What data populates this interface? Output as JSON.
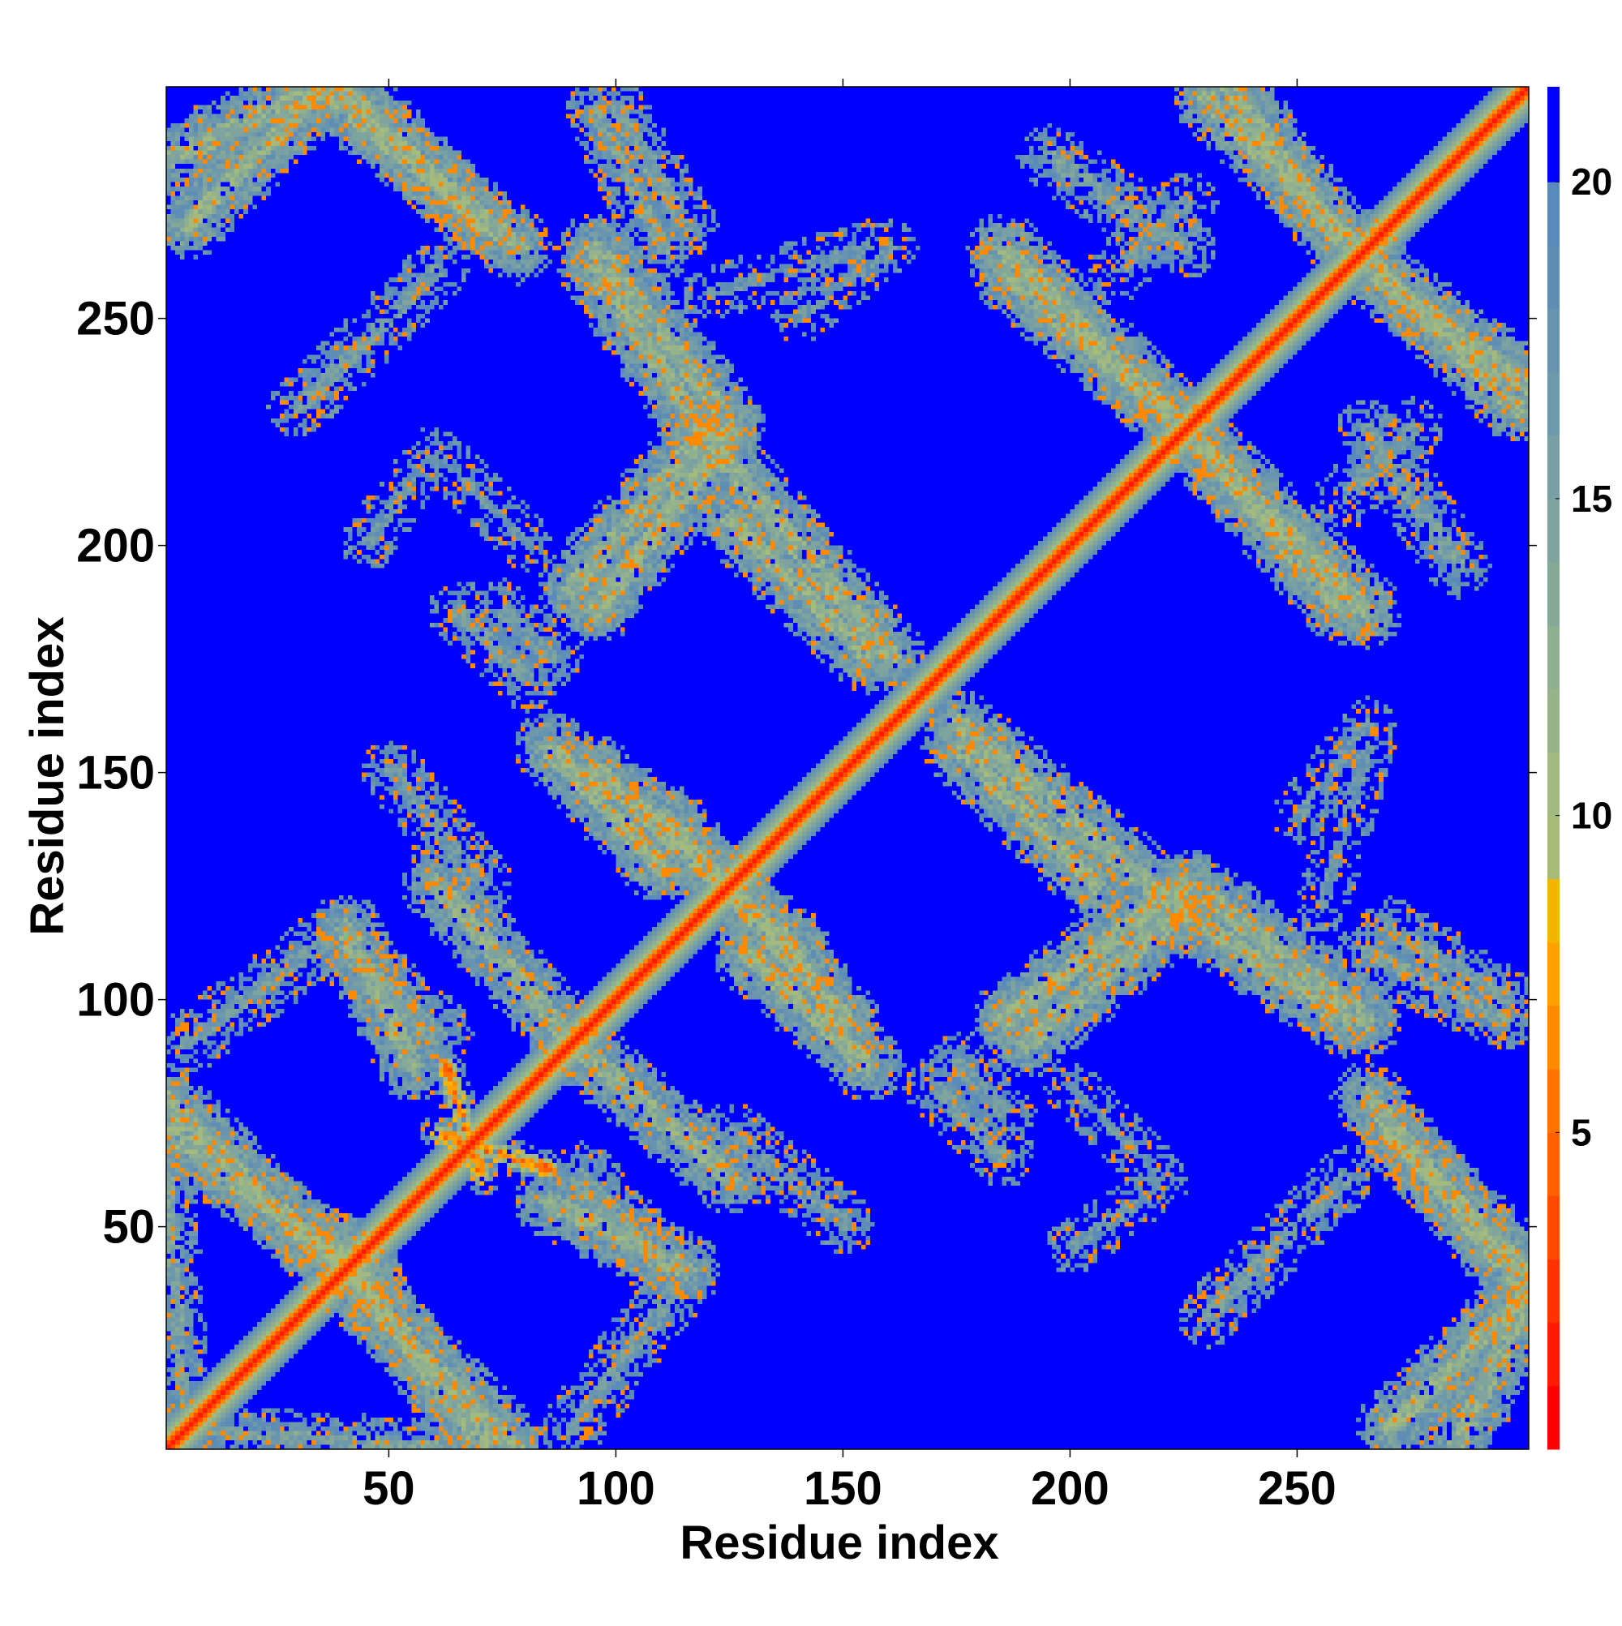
{
  "chart_data": {
    "type": "heatmap",
    "title": "",
    "xlabel": "Residue index",
    "ylabel": "Residue index",
    "xlim": [
      1,
      301
    ],
    "ylim": [
      1,
      301
    ],
    "x_ticks": [
      50,
      100,
      150,
      200,
      250
    ],
    "y_ticks": [
      50,
      100,
      150,
      200,
      250
    ],
    "x_tick_labels": [
      "50",
      "100",
      "150",
      "200",
      "250"
    ],
    "y_tick_labels": [
      "50",
      "100",
      "150",
      "200",
      "250"
    ],
    "value_range": [
      0,
      21.5
    ],
    "colorbar": {
      "ticks": [
        5,
        10,
        15,
        20
      ],
      "labels": [
        "5",
        "10",
        "15",
        "20"
      ],
      "levels": [
        {
          "from": 0,
          "to": 1,
          "color": "#ff0000"
        },
        {
          "from": 1,
          "to": 2,
          "color": "#ff1a00"
        },
        {
          "from": 2,
          "to": 3,
          "color": "#ff3300"
        },
        {
          "from": 3,
          "to": 4,
          "color": "#ff4a00"
        },
        {
          "from": 4,
          "to": 5,
          "color": "#ff6000"
        },
        {
          "from": 5,
          "to": 6,
          "color": "#ff7400"
        },
        {
          "from": 6,
          "to": 7,
          "color": "#ff8a00"
        },
        {
          "from": 7,
          "to": 8,
          "color": "#ffa000"
        },
        {
          "from": 8,
          "to": 9,
          "color": "#f5b400"
        },
        {
          "from": 9,
          "to": 10,
          "color": "#a8bc7a"
        },
        {
          "from": 10,
          "to": 11,
          "color": "#a2ba80"
        },
        {
          "from": 11,
          "to": 12,
          "color": "#97b38a"
        },
        {
          "from": 12,
          "to": 13,
          "color": "#8eaf90"
        },
        {
          "from": 13,
          "to": 14,
          "color": "#85a897"
        },
        {
          "from": 14,
          "to": 15,
          "color": "#7fa39d"
        },
        {
          "from": 15,
          "to": 16,
          "color": "#779fa4"
        },
        {
          "from": 16,
          "to": 17,
          "color": "#6e99aa"
        },
        {
          "from": 17,
          "to": 18,
          "color": "#6894b0"
        },
        {
          "from": 18,
          "to": 19,
          "color": "#5f8eb5"
        },
        {
          "from": 19,
          "to": 20,
          "color": "#5a8abb"
        },
        {
          "from": 20,
          "to": 21.5,
          "color": "#0000ff"
        }
      ]
    },
    "background_value": 21.5,
    "diagonal": {
      "profile": [
        [
          0,
          1
        ],
        [
          1,
          3.5
        ],
        [
          2,
          6.5
        ],
        [
          3,
          10
        ],
        [
          4,
          12
        ],
        [
          5,
          14
        ],
        [
          6,
          16
        ],
        [
          7,
          18
        ],
        [
          8,
          19.5
        ]
      ]
    },
    "bands": [
      {
        "x": [
          1,
          48
        ],
        "y": [
          77,
          30
        ],
        "width": 6,
        "value": 12.5
      },
      {
        "x": [
          2,
          34
        ],
        "y": [
          285,
          300
        ],
        "width": 6,
        "value": 13
      },
      {
        "x": [
          35,
          78
        ],
        "y": [
          300,
          265
        ],
        "width": 6,
        "value": 12.5
      },
      {
        "x": [
          12,
          60
        ],
        "y": [
          4,
          1
        ],
        "width": 4,
        "value": 15
      },
      {
        "x": [
          38,
          70
        ],
        "y": [
          45,
          2
        ],
        "width": 6,
        "value": 12.5
      },
      {
        "x": [
          60,
          90
        ],
        "y": [
          125,
          90
        ],
        "width": 6,
        "value": 13
      },
      {
        "x": [
          40,
          60
        ],
        "y": [
          110,
          92
        ],
        "width": 6,
        "value": 15
      },
      {
        "x": [
          50,
          70
        ],
        "y": [
          150,
          125
        ],
        "width": 5,
        "value": 16.5
      },
      {
        "x": [
          60,
          85
        ],
        "y": [
          70,
          62
        ],
        "width": 2,
        "value": 6.5
      },
      {
        "x": [
          85,
          115
        ],
        "y": [
          55,
          40
        ],
        "width": 6,
        "value": 13
      },
      {
        "x": [
          90,
          112
        ],
        "y": [
          5,
          35
        ],
        "width": 5,
        "value": 16
      },
      {
        "x": [
          95,
          140
        ],
        "y": [
          150,
          110
        ],
        "width": 6,
        "value": 12.5
      },
      {
        "x": [
          128,
          155
        ],
        "y": [
          110,
          85
        ],
        "width": 6,
        "value": 12.5
      },
      {
        "x": [
          90,
          120
        ],
        "y": [
          190,
          225
        ],
        "width": 6,
        "value": 13
      },
      {
        "x": [
          95,
          122
        ],
        "y": [
          265,
          230
        ],
        "width": 6,
        "value": 13
      },
      {
        "x": [
          100,
          115
        ],
        "y": [
          295,
          270
        ],
        "width": 5,
        "value": 15.5
      },
      {
        "x": [
          118,
          160
        ],
        "y": [
          225,
          175
        ],
        "width": 6,
        "value": 12.5
      },
      {
        "x": [
          175,
          205
        ],
        "y": [
          155,
          125
        ],
        "width": 6,
        "value": 12.5
      },
      {
        "x": [
          185,
          225
        ],
        "y": [
          95,
          125
        ],
        "width": 6,
        "value": 12.5
      },
      {
        "x": [
          230,
          260
        ],
        "y": [
          115,
          95
        ],
        "width": 6,
        "value": 13
      },
      {
        "x": [
          265,
          295
        ],
        "y": [
          110,
          95
        ],
        "width": 5,
        "value": 15
      },
      {
        "x": [
          185,
          225
        ],
        "y": [
          260,
          225
        ],
        "width": 6,
        "value": 12.5
      },
      {
        "x": [
          230,
          265
        ],
        "y": [
          220,
          185
        ],
        "width": 6,
        "value": 12.5
      },
      {
        "x": [
          230,
          262
        ],
        "y": [
          298,
          265
        ],
        "width": 6,
        "value": 12.5
      },
      {
        "x": [
          268,
          300
        ],
        "y": [
          258,
          235
        ],
        "width": 6,
        "value": 12.5
      },
      {
        "x": [
          195,
          225
        ],
        "y": [
          285,
          265
        ],
        "width": 5,
        "value": 15.5
      },
      {
        "x": [
          270,
          300
        ],
        "y": [
          70,
          40
        ],
        "width": 6,
        "value": 12.5
      },
      {
        "x": [
          270,
          300
        ],
        "y": [
          5,
          35
        ],
        "width": 6,
        "value": 12.5
      },
      {
        "x": [
          230,
          260
        ],
        "y": [
          30,
          60
        ],
        "width": 5,
        "value": 16
      },
      {
        "x": [
          260,
          275
        ],
        "y": [
          210,
          225
        ],
        "width": 5,
        "value": 16.5
      },
      {
        "x": [
          250,
          265
        ],
        "y": [
          140,
          160
        ],
        "width": 4,
        "value": 17
      },
      {
        "x": [
          200,
          215
        ],
        "y": [
          45,
          55
        ],
        "width": 4,
        "value": 17
      },
      {
        "x": [
          60,
          80
        ],
        "y": [
          220,
          200
        ],
        "width": 4,
        "value": 17
      },
      {
        "x": [
          120,
          155
        ],
        "y": [
          255,
          265
        ],
        "width": 4,
        "value": 17.5
      },
      {
        "x": [
          75,
          85
        ],
        "y": [
          185,
          175
        ],
        "width": 5,
        "value": 16
      },
      {
        "x": [
          170,
          185
        ],
        "y": [
          80,
          65
        ],
        "width": 5,
        "value": 16
      }
    ]
  }
}
